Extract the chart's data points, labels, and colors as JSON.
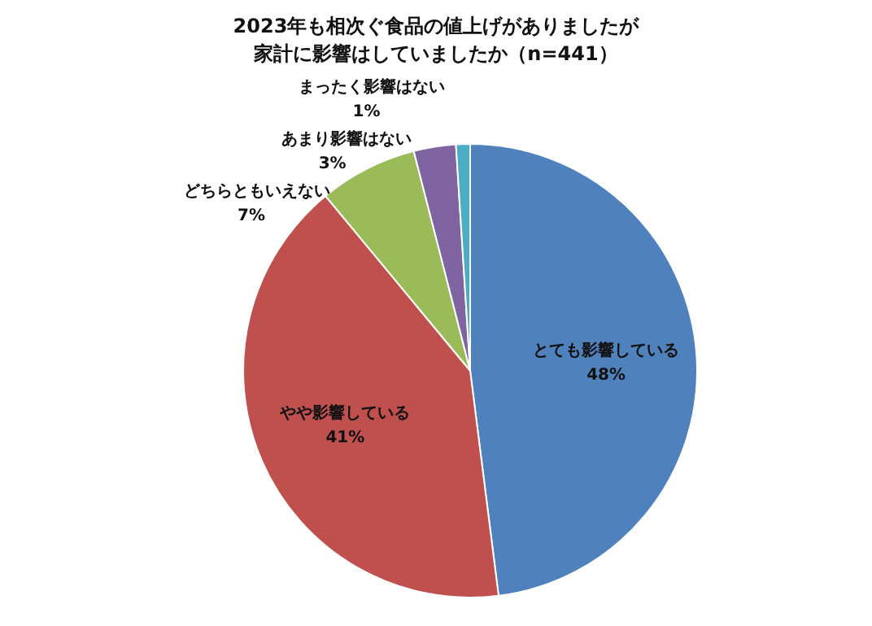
{
  "chart_data": {
    "type": "pie",
    "title": "2023年も相次ぐ食品の値上げがありましたが家計に影響はしていましたか（n=441）",
    "categories": [
      "とても影響している",
      "やや影響している",
      "どちらともいえない",
      "あまり影響はない",
      "まったく影響はない"
    ],
    "values": [
      48,
      41,
      7,
      3,
      1
    ],
    "value_labels": [
      "48%",
      "41%",
      "7%",
      "3%",
      "1%"
    ],
    "colors": [
      "#4f81bd",
      "#c0504d",
      "#9bbb59",
      "#8064a2",
      "#4bacc6"
    ],
    "legend": false
  }
}
